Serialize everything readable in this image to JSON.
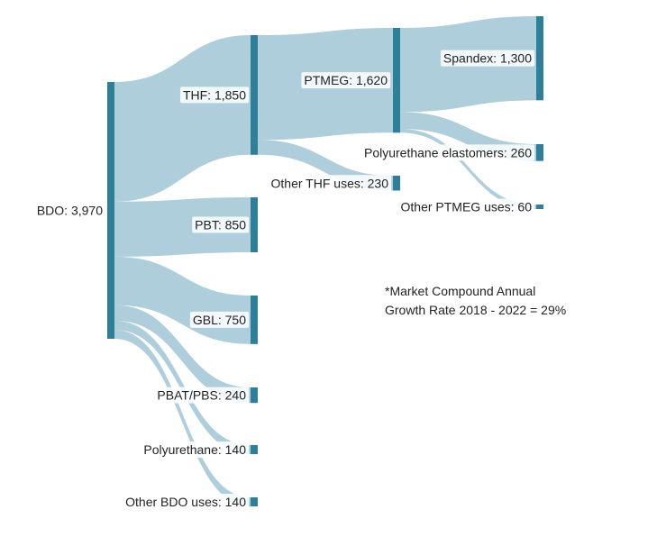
{
  "colors": {
    "node": "#2e7f9a",
    "link": "#a9cbd8",
    "label_bg": "#ffffff",
    "text": "#222222"
  },
  "note": {
    "line1": "*Market Compound Annual",
    "line2": "Growth Rate 2018 - 2022 = 29%"
  },
  "chart_data": {
    "type": "sankey",
    "nodes": [
      {
        "id": "bdo",
        "label": "BDO: 3,970",
        "value": 3970
      },
      {
        "id": "thf",
        "label": "THF: 1,850",
        "value": 1850
      },
      {
        "id": "pbt",
        "label": "PBT: 850",
        "value": 850
      },
      {
        "id": "gbl",
        "label": "GBL: 750",
        "value": 750
      },
      {
        "id": "pbat",
        "label": "PBAT/PBS: 240",
        "value": 240
      },
      {
        "id": "pu",
        "label": "Polyurethane: 140",
        "value": 140
      },
      {
        "id": "other_bdo",
        "label": "Other BDO uses: 140",
        "value": 140
      },
      {
        "id": "ptmeg",
        "label": "PTMEG: 1,620",
        "value": 1620
      },
      {
        "id": "other_thf",
        "label": "Other THF uses: 230",
        "value": 230
      },
      {
        "id": "spandex",
        "label": "Spandex: 1,300",
        "value": 1300
      },
      {
        "id": "pu_elast",
        "label": "Polyurethane elastomers: 260",
        "value": 260
      },
      {
        "id": "other_ptmeg",
        "label": "Other PTMEG uses: 60",
        "value": 60
      }
    ],
    "links": [
      {
        "source": "bdo",
        "target": "thf",
        "value": 1850
      },
      {
        "source": "bdo",
        "target": "pbt",
        "value": 850
      },
      {
        "source": "bdo",
        "target": "gbl",
        "value": 750
      },
      {
        "source": "bdo",
        "target": "pbat",
        "value": 240
      },
      {
        "source": "bdo",
        "target": "pu",
        "value": 140
      },
      {
        "source": "bdo",
        "target": "other_bdo",
        "value": 140
      },
      {
        "source": "thf",
        "target": "ptmeg",
        "value": 1620
      },
      {
        "source": "thf",
        "target": "other_thf",
        "value": 230
      },
      {
        "source": "ptmeg",
        "target": "spandex",
        "value": 1300
      },
      {
        "source": "ptmeg",
        "target": "pu_elast",
        "value": 260
      },
      {
        "source": "ptmeg",
        "target": "other_ptmeg",
        "value": 60
      }
    ]
  }
}
